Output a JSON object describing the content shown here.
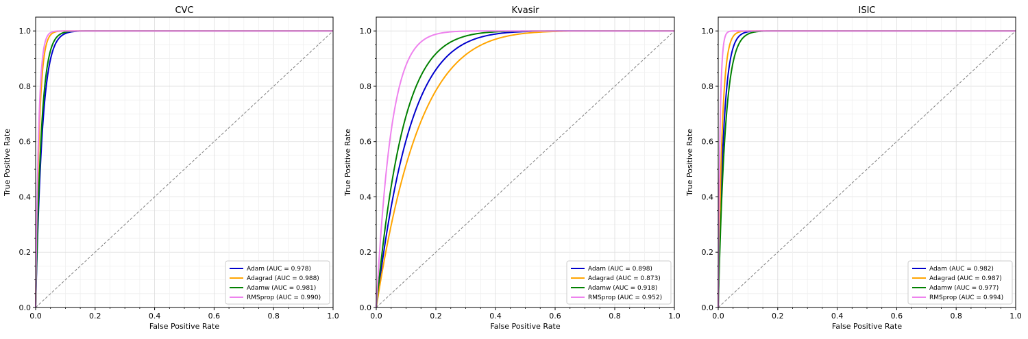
{
  "chart_data": [
    {
      "type": "line",
      "title": "CVC",
      "xlabel": "False Positive Rate",
      "ylabel": "True Positive Rate",
      "xlim": [
        0,
        1.0
      ],
      "ylim": [
        0,
        1.05
      ],
      "x_ticks": [
        "0.0",
        "0.2",
        "0.4",
        "0.6",
        "0.8",
        "1.0"
      ],
      "y_ticks": [
        "0.0",
        "0.2",
        "0.4",
        "0.6",
        "0.8",
        "1.0"
      ],
      "grid": true,
      "legend_position": "bottom-right",
      "series": [
        {
          "name": "Adam (AUC = 0.978)",
          "color": "#0000cd",
          "auc": 0.978
        },
        {
          "name": "Adagrad (AUC = 0.988)",
          "color": "#ffa500",
          "auc": 0.988
        },
        {
          "name": "Adamw (AUC = 0.981)",
          "color": "#008000",
          "auc": 0.981
        },
        {
          "name": "RMSprop (AUC = 0.990)",
          "color": "#ee82ee",
          "auc": 0.99
        }
      ]
    },
    {
      "type": "line",
      "title": "Kvasir",
      "xlabel": "False Positive Rate",
      "ylabel": "True Positive Rate",
      "xlim": [
        0,
        1.0
      ],
      "ylim": [
        0,
        1.05
      ],
      "x_ticks": [
        "0.0",
        "0.2",
        "0.4",
        "0.6",
        "0.8",
        "1.0"
      ],
      "y_ticks": [
        "0.0",
        "0.2",
        "0.4",
        "0.6",
        "0.8",
        "1.0"
      ],
      "grid": true,
      "legend_position": "bottom-right",
      "series": [
        {
          "name": "Adam (AUC = 0.898)",
          "color": "#0000cd",
          "auc": 0.898
        },
        {
          "name": "Adagrad (AUC = 0.873)",
          "color": "#ffa500",
          "auc": 0.873
        },
        {
          "name": "Adamw (AUC = 0.918)",
          "color": "#008000",
          "auc": 0.918
        },
        {
          "name": "RMSprop (AUC = 0.952)",
          "color": "#ee82ee",
          "auc": 0.952
        }
      ]
    },
    {
      "type": "line",
      "title": "ISIC",
      "xlabel": "False Positive Rate",
      "ylabel": "True Positive Rate",
      "xlim": [
        0,
        1.0
      ],
      "ylim": [
        0,
        1.05
      ],
      "x_ticks": [
        "0.0",
        "0.2",
        "0.4",
        "0.6",
        "0.8",
        "1.0"
      ],
      "y_ticks": [
        "0.0",
        "0.2",
        "0.4",
        "0.6",
        "0.8",
        "1.0"
      ],
      "grid": true,
      "legend_position": "bottom-right",
      "series": [
        {
          "name": "Adam (AUC = 0.982)",
          "color": "#0000cd",
          "auc": 0.982
        },
        {
          "name": "Adagrad (AUC = 0.987)",
          "color": "#ffa500",
          "auc": 0.987
        },
        {
          "name": "Adamw (AUC = 0.977)",
          "color": "#008000",
          "auc": 0.977
        },
        {
          "name": "RMSprop (AUC = 0.994)",
          "color": "#ee82ee",
          "auc": 0.994
        }
      ]
    }
  ]
}
